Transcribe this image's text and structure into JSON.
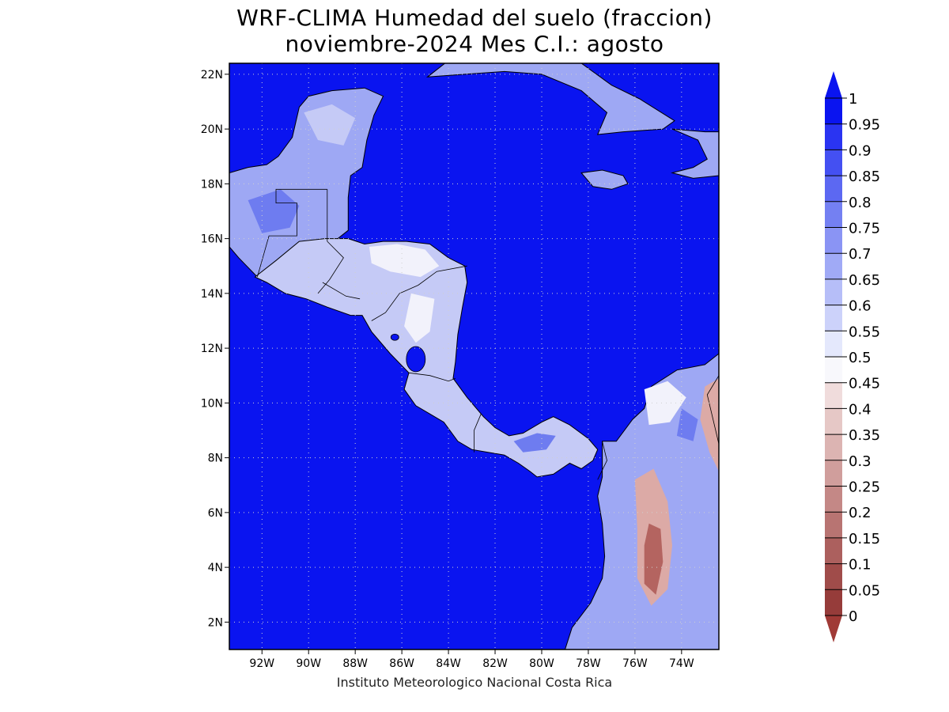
{
  "title": {
    "line1": "WRF-CLIMA Humedad del suelo (fraccion)",
    "line2": "noviembre-2024 Mes C.I.: agosto"
  },
  "credit": "Instituto Meteorologico Nacional Costa Rica",
  "map": {
    "lon_range": [
      -93.4,
      -72.4
    ],
    "lat_range": [
      1.0,
      22.4
    ],
    "lat_ticks": [
      "2N",
      "4N",
      "6N",
      "8N",
      "10N",
      "12N",
      "14N",
      "16N",
      "18N",
      "20N",
      "22N"
    ],
    "lat_values": [
      2,
      4,
      6,
      8,
      10,
      12,
      14,
      16,
      18,
      20,
      22
    ],
    "lon_ticks": [
      "92W",
      "90W",
      "88W",
      "86W",
      "84W",
      "82W",
      "80W",
      "78W",
      "76W",
      "74W"
    ],
    "lon_values": [
      -92,
      -90,
      -88,
      -86,
      -84,
      -82,
      -80,
      -78,
      -76,
      -74
    ],
    "grid": true,
    "ocean_color": "#0a14f0",
    "land_colors": {
      "wet": "#6e7cf0",
      "moist": "#9ea8f4",
      "medium": "#c5caf6",
      "neutral": "#f2f2fb",
      "dry": "#dcaaa6",
      "very_dry": "#b46460"
    }
  },
  "colorbar": {
    "labels": [
      "1",
      "0.95",
      "0.9",
      "0.85",
      "0.8",
      "0.75",
      "0.7",
      "0.65",
      "0.6",
      "0.55",
      "0.5",
      "0.45",
      "0.4",
      "0.35",
      "0.3",
      "0.25",
      "0.2",
      "0.15",
      "0.1",
      "0.05",
      "0"
    ],
    "colors": [
      "#0a14f0",
      "#2a34f2",
      "#4450f2",
      "#5c68f2",
      "#7480f2",
      "#8a94f4",
      "#a0aaf6",
      "#b6bef8",
      "#ccd2fa",
      "#e4e8fc",
      "#f8f8fc",
      "#f0dcdc",
      "#e6c8c6",
      "#dcb4b2",
      "#d09e9c",
      "#c48886",
      "#b87472",
      "#ac605e",
      "#a04c4a",
      "#963c3a"
    ],
    "top_arrow_color": "#0a14f0",
    "bottom_arrow_color": "#a03a36"
  }
}
